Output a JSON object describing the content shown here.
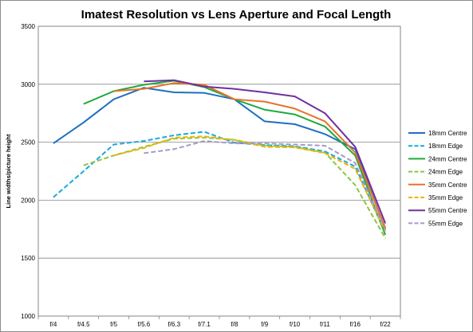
{
  "chart_data": {
    "type": "line",
    "title": "Imatest Resolution vs Lens Aperture and Focal Length",
    "xlabel": "",
    "ylabel": "Line widths/picture height",
    "categories": [
      "f/4",
      "f/4.5",
      "f/5",
      "f/5.6",
      "f/6.3",
      "f/7.1",
      "f/8",
      "f/9",
      "f/10",
      "f/11",
      "f/16",
      "f/22"
    ],
    "ylim": [
      1000,
      3500
    ],
    "yticks": [
      1000,
      1500,
      2000,
      2500,
      3000,
      3500
    ],
    "grid": true,
    "legend": "right",
    "series": [
      {
        "name": "18mm Centre",
        "color": "#1f6fbf",
        "dash": false,
        "values": [
          2490,
          2670,
          2870,
          2970,
          2930,
          2925,
          2870,
          2680,
          2655,
          2570,
          2440,
          1750
        ]
      },
      {
        "name": "18mm Edge",
        "color": "#19a8e0",
        "dash": true,
        "values": [
          2025,
          2250,
          2480,
          2510,
          2560,
          2590,
          2495,
          2475,
          2465,
          2420,
          2290,
          1720
        ]
      },
      {
        "name": "24mm Centre",
        "color": "#1faa3c",
        "dash": false,
        "values": [
          null,
          2830,
          2940,
          2995,
          3030,
          2975,
          2870,
          2780,
          2740,
          2635,
          2385,
          1700
        ]
      },
      {
        "name": "24mm Edge",
        "color": "#8cc63f",
        "dash": true,
        "values": [
          null,
          2300,
          2385,
          2460,
          2530,
          2540,
          2520,
          2470,
          2460,
          2410,
          2130,
          1670
        ]
      },
      {
        "name": "35mm Centre",
        "color": "#e8722a",
        "dash": false,
        "values": [
          null,
          null,
          2940,
          2960,
          3010,
          2995,
          2870,
          2850,
          2790,
          2680,
          2410,
          1760
        ]
      },
      {
        "name": "35mm Edge",
        "color": "#f0b400",
        "dash": true,
        "values": [
          null,
          null,
          2385,
          2450,
          2540,
          2550,
          2520,
          2460,
          2455,
          2405,
          2270,
          1730
        ]
      },
      {
        "name": "55mm Centre",
        "color": "#7030a0",
        "dash": false,
        "values": [
          null,
          null,
          null,
          3025,
          3035,
          2980,
          2960,
          2930,
          2895,
          2750,
          2460,
          1800
        ]
      },
      {
        "name": "55mm Edge",
        "color": "#a59ac8",
        "dash": true,
        "values": [
          null,
          null,
          null,
          2405,
          2440,
          2510,
          2490,
          2490,
          2480,
          2470,
          2320,
          1740
        ]
      }
    ]
  }
}
